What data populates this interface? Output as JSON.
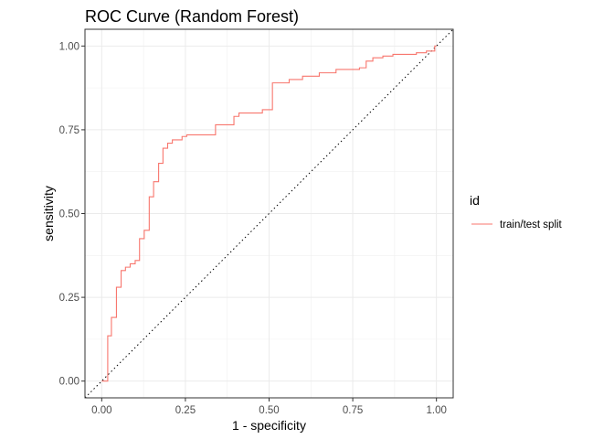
{
  "chart_data": {
    "type": "line",
    "title": "ROC Curve (Random Forest)",
    "xlabel": "1 - specificity",
    "ylabel": "sensitivity",
    "xlim": [
      -0.05,
      1.05
    ],
    "ylim": [
      -0.05,
      1.05
    ],
    "x_ticks": [
      0.0,
      0.25,
      0.5,
      0.75,
      1.0
    ],
    "y_ticks": [
      0.0,
      0.25,
      0.5,
      0.75,
      1.0
    ],
    "x_tick_labels": [
      "0.00",
      "0.25",
      "0.50",
      "0.75",
      "1.00"
    ],
    "y_tick_labels": [
      "0.00",
      "0.25",
      "0.50",
      "0.75",
      "1.00"
    ],
    "grid": true,
    "legend": {
      "title": "id",
      "position": "right"
    },
    "reference_line": {
      "style": "dotted",
      "color": "#000000",
      "x": [
        0,
        1
      ],
      "y": [
        0,
        1
      ]
    },
    "series": [
      {
        "name": "train/test split",
        "color": "#F8766D",
        "x": [
          0.0,
          0.018,
          0.018,
          0.029,
          0.029,
          0.044,
          0.044,
          0.058,
          0.058,
          0.071,
          0.071,
          0.085,
          0.085,
          0.1,
          0.1,
          0.113,
          0.113,
          0.127,
          0.127,
          0.142,
          0.142,
          0.155,
          0.155,
          0.17,
          0.17,
          0.183,
          0.183,
          0.197,
          0.197,
          0.211,
          0.211,
          0.24,
          0.24,
          0.254,
          0.254,
          0.268,
          0.268,
          0.34,
          0.34,
          0.395,
          0.395,
          0.41,
          0.41,
          0.45,
          0.45,
          0.48,
          0.48,
          0.51,
          0.51,
          0.56,
          0.56,
          0.6,
          0.6,
          0.65,
          0.65,
          0.7,
          0.7,
          0.77,
          0.77,
          0.79,
          0.79,
          0.81,
          0.81,
          0.84,
          0.84,
          0.87,
          0.87,
          0.94,
          0.94,
          0.97,
          0.97,
          0.995,
          0.995,
          1.0
        ],
        "y": [
          0.0,
          0.0,
          0.135,
          0.135,
          0.19,
          0.19,
          0.28,
          0.28,
          0.33,
          0.33,
          0.34,
          0.34,
          0.35,
          0.35,
          0.36,
          0.36,
          0.425,
          0.425,
          0.45,
          0.45,
          0.55,
          0.55,
          0.595,
          0.595,
          0.65,
          0.65,
          0.695,
          0.695,
          0.71,
          0.71,
          0.72,
          0.72,
          0.73,
          0.73,
          0.735,
          0.735,
          0.735,
          0.735,
          0.765,
          0.765,
          0.79,
          0.79,
          0.8,
          0.8,
          0.8,
          0.8,
          0.81,
          0.81,
          0.89,
          0.89,
          0.9,
          0.9,
          0.91,
          0.91,
          0.92,
          0.92,
          0.93,
          0.93,
          0.935,
          0.935,
          0.955,
          0.955,
          0.965,
          0.965,
          0.97,
          0.97,
          0.975,
          0.975,
          0.98,
          0.98,
          0.985,
          0.985,
          1.0,
          1.0
        ]
      }
    ]
  }
}
